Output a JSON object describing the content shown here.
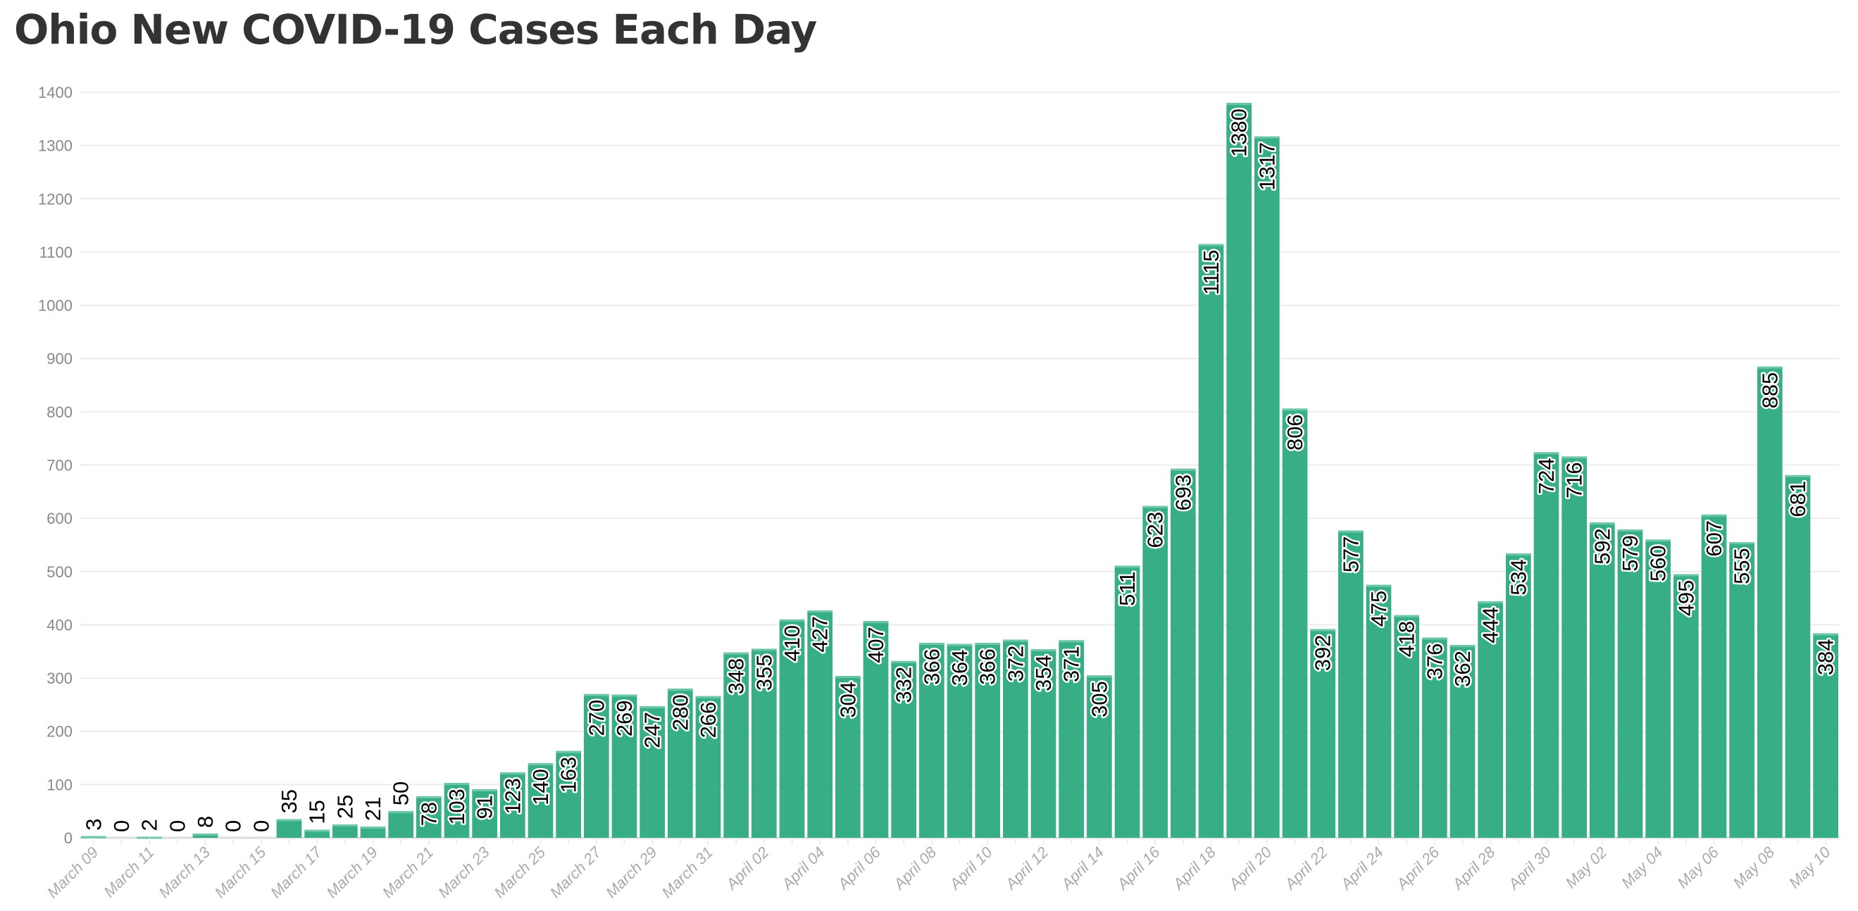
{
  "chart_data": {
    "type": "bar",
    "title": "Ohio New COVID-19 Cases Each Day",
    "xlabel": "",
    "ylabel": "",
    "ylim": [
      0,
      1400
    ],
    "yticks": [
      0,
      100,
      200,
      300,
      400,
      500,
      600,
      700,
      800,
      900,
      1000,
      1100,
      1200,
      1300,
      1400
    ],
    "grid": true,
    "bar_color": "#38ae87",
    "categories": [
      "March 09",
      "March 10",
      "March 11",
      "March 12",
      "March 13",
      "March 14",
      "March 15",
      "March 16",
      "March 17",
      "March 18",
      "March 19",
      "March 20",
      "March 21",
      "March 22",
      "March 23",
      "March 24",
      "March 25",
      "March 26",
      "March 27",
      "March 28",
      "March 29",
      "March 30",
      "March 31",
      "April 01",
      "April 02",
      "April 03",
      "April 04",
      "April 05",
      "April 06",
      "April 07",
      "April 08",
      "April 09",
      "April 10",
      "April 11",
      "April 12",
      "April 13",
      "April 14",
      "April 15",
      "April 16",
      "April 17",
      "April 18",
      "April 19",
      "April 20",
      "April 21",
      "April 22",
      "April 23",
      "April 24",
      "April 25",
      "April 26",
      "April 27",
      "April 28",
      "April 29",
      "April 30",
      "May 01",
      "May 02",
      "May 03",
      "May 04",
      "May 05",
      "May 06",
      "May 07",
      "May 08",
      "May 09",
      "May 10"
    ],
    "values": [
      3,
      0,
      2,
      0,
      8,
      0,
      0,
      35,
      15,
      25,
      21,
      50,
      78,
      103,
      91,
      123,
      140,
      163,
      270,
      269,
      247,
      280,
      266,
      348,
      355,
      410,
      427,
      304,
      407,
      332,
      366,
      364,
      366,
      372,
      354,
      371,
      305,
      511,
      623,
      693,
      1115,
      1380,
      1317,
      806,
      392,
      577,
      475,
      418,
      376,
      362,
      444,
      534,
      724,
      716,
      592,
      579,
      560,
      495,
      607,
      555,
      885,
      681,
      384
    ]
  }
}
